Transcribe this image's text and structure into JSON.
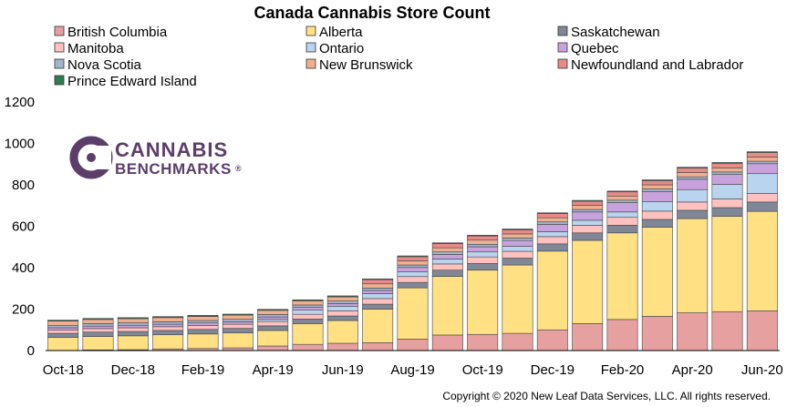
{
  "chart_data": {
    "type": "bar",
    "stacked": true,
    "title": "Canada Cannabis Store Count",
    "ylim": [
      0,
      1200
    ],
    "yticks": [
      "0",
      "200",
      "400",
      "600",
      "800",
      "1000",
      "1200"
    ],
    "grid": false,
    "legend_position": "top",
    "categories": [
      "Oct-18",
      "Nov-18",
      "Dec-18",
      "Jan-19",
      "Feb-19",
      "Mar-19",
      "Apr-19",
      "May-19",
      "Jun-19",
      "Jul-19",
      "Aug-19",
      "Sep-19",
      "Oct-19",
      "Nov-19",
      "Dec-19",
      "Jan-20",
      "Feb-20",
      "Mar-20",
      "Apr-20",
      "May-20",
      "Jun-20"
    ],
    "xtick_labels": [
      "Oct-18",
      "Dec-18",
      "Feb-19",
      "Apr-19",
      "Jun-19",
      "Aug-19",
      "Oct-19",
      "Dec-19",
      "Feb-20",
      "Apr-20",
      "Jun-20"
    ],
    "series": [
      {
        "name": "British Columbia",
        "color": "#e6a0a0",
        "values": [
          1,
          3,
          4,
          8,
          10,
          13,
          22,
          30,
          35,
          38,
          55,
          75,
          78,
          83,
          100,
          130,
          150,
          165,
          182,
          188,
          192
        ]
      },
      {
        "name": "Alberta",
        "color": "#ffe083",
        "values": [
          62,
          65,
          67,
          68,
          70,
          72,
          75,
          100,
          110,
          162,
          248,
          283,
          310,
          330,
          380,
          402,
          418,
          430,
          455,
          460,
          480
        ]
      },
      {
        "name": "Saskatchewan",
        "color": "#808898",
        "values": [
          20,
          21,
          21,
          21,
          22,
          22,
          22,
          22,
          22,
          24,
          26,
          30,
          32,
          33,
          35,
          36,
          37,
          38,
          40,
          42,
          45
        ]
      },
      {
        "name": "Manitoba",
        "color": "#ffc0c0",
        "values": [
          15,
          17,
          18,
          18,
          19,
          20,
          21,
          23,
          25,
          27,
          28,
          30,
          32,
          33,
          35,
          37,
          38,
          40,
          40,
          42,
          42
        ]
      },
      {
        "name": "Ontario",
        "color": "#b8d4ee",
        "values": [
          0,
          0,
          0,
          0,
          0,
          0,
          10,
          20,
          22,
          24,
          24,
          24,
          24,
          24,
          24,
          24,
          26,
          45,
          60,
          70,
          95
        ]
      },
      {
        "name": "Quebec",
        "color": "#c8a2dc",
        "values": [
          12,
          12,
          12,
          12,
          12,
          12,
          12,
          13,
          13,
          15,
          20,
          22,
          25,
          28,
          35,
          40,
          45,
          50,
          50,
          48,
          48
        ]
      },
      {
        "name": "Nova Scotia",
        "color": "#a0b4cc",
        "values": [
          12,
          12,
          12,
          12,
          12,
          12,
          12,
          12,
          12,
          12,
          12,
          12,
          12,
          12,
          12,
          12,
          12,
          12,
          12,
          12,
          12
        ]
      },
      {
        "name": "New Brunswick",
        "color": "#f0b090",
        "values": [
          20,
          20,
          20,
          20,
          20,
          20,
          20,
          20,
          20,
          20,
          20,
          20,
          20,
          20,
          20,
          20,
          20,
          20,
          20,
          20,
          20
        ]
      },
      {
        "name": "Newfoundland and Labrador",
        "color": "#e88a8a",
        "values": [
          1,
          1,
          1,
          1,
          1,
          1,
          1,
          1,
          1,
          20,
          20,
          20,
          20,
          20,
          20,
          20,
          20,
          20,
          22,
          22,
          22
        ]
      },
      {
        "name": "Prince Edward Island",
        "color": "#2e7d4f",
        "values": [
          4,
          4,
          4,
          4,
          4,
          4,
          4,
          4,
          4,
          4,
          4,
          4,
          4,
          4,
          4,
          4,
          4,
          4,
          4,
          4,
          4
        ]
      }
    ]
  },
  "logo": {
    "line1": "CANNABIS",
    "line2": "BENCHMARKS",
    "mark": "®"
  },
  "copyright": "Copyright © 2020 New Leaf Data Services, LLC. All rights reserved."
}
